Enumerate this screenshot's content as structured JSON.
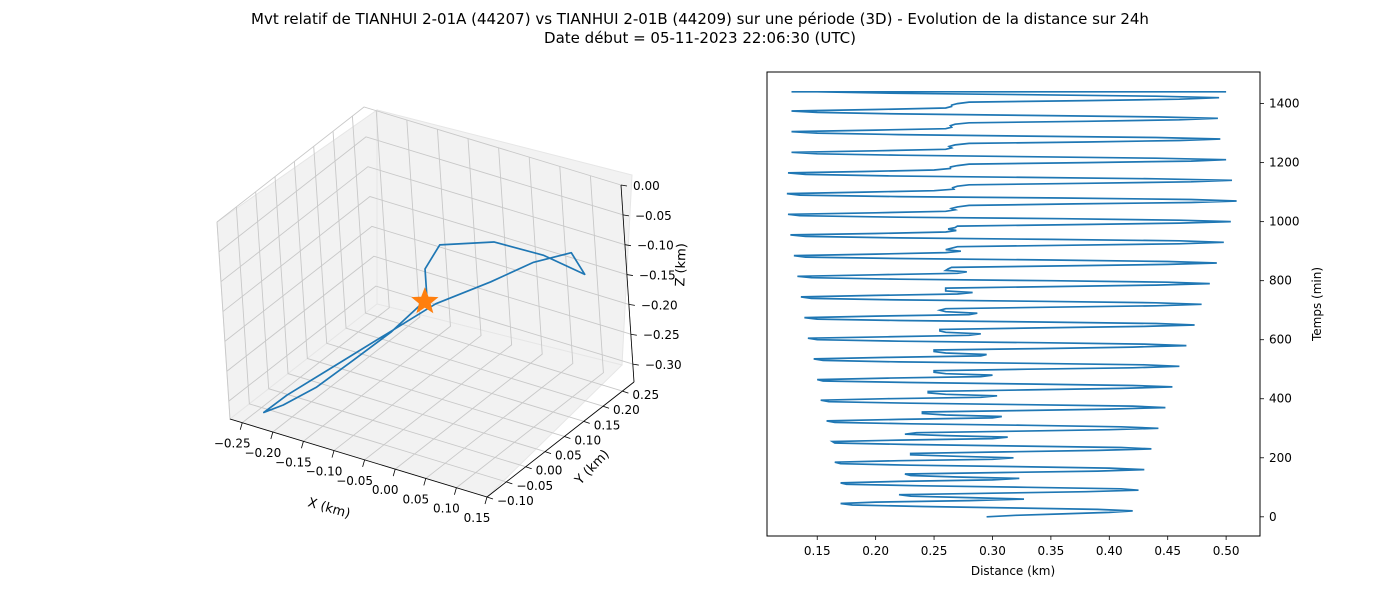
{
  "figure": {
    "title_line1": "Mvt relatif de TIANHUI 2-01A (44207) vs TIANHUI 2-01B (44209) sur une période (3D) - Evolution de la distance sur 24h",
    "title_line2": "Date début = 05-11-2023 22:06:30 (UTC)"
  },
  "colors": {
    "series": "#1f77b4",
    "marker": "#ff7f0e",
    "pane": "#f2f2f2",
    "grid": "#c8c8c8"
  },
  "chart_data": [
    {
      "type": "line3d",
      "xlabel": "X (km)",
      "ylabel": "Y (km)",
      "zlabel": "Z (km)",
      "xlim": [
        -0.27,
        0.15
      ],
      "ylim": [
        -0.1,
        0.28
      ],
      "zlim": [
        -0.33,
        0.0
      ],
      "x_ticks": [
        "−0.25",
        "−0.20",
        "−0.15",
        "−0.10",
        "−0.05",
        "0.00",
        "0.05",
        "0.10",
        "0.15"
      ],
      "y_ticks": [
        "−0.10",
        "−0.05",
        "0.00",
        "0.05",
        "0.10",
        "0.15",
        "0.20",
        "0.25"
      ],
      "z_ticks": [
        "0.00",
        "−0.05",
        "−0.10",
        "−0.15",
        "−0.20",
        "−0.25",
        "−0.30"
      ],
      "grid": true,
      "series": [
        {
          "points": [
            [
              -0.03,
              0.05,
              -0.13
            ],
            [
              -0.06,
              0.0,
              -0.17
            ],
            [
              -0.1,
              -0.04,
              -0.21
            ],
            [
              -0.15,
              -0.06,
              -0.26
            ],
            [
              -0.2,
              -0.07,
              -0.3
            ],
            [
              -0.24,
              -0.06,
              -0.33
            ],
            [
              -0.22,
              -0.03,
              -0.31
            ],
            [
              -0.16,
              0.01,
              -0.26
            ],
            [
              -0.1,
              0.05,
              -0.21
            ],
            [
              -0.05,
              0.1,
              -0.17
            ],
            [
              0.01,
              0.15,
              -0.14
            ],
            [
              0.05,
              0.2,
              -0.12
            ],
            [
              0.08,
              0.25,
              -0.12
            ],
            [
              0.1,
              0.25,
              -0.15
            ],
            [
              0.06,
              0.21,
              -0.11
            ],
            [
              0.02,
              0.15,
              -0.07
            ],
            [
              -0.03,
              0.09,
              -0.06
            ],
            [
              -0.03,
              0.05,
              -0.08
            ],
            [
              -0.03,
              0.05,
              -0.13
            ]
          ]
        }
      ],
      "marker": {
        "symbol": "star",
        "point": [
          0.0,
          0.0,
          -0.1
        ]
      }
    },
    {
      "type": "line",
      "xlabel": "Distance (km)",
      "ylabel": "Temps (min)",
      "xlim": [
        0.107,
        0.529
      ],
      "ylim": [
        -65,
        1507
      ],
      "x_ticks": [
        0.15,
        0.2,
        0.25,
        0.3,
        0.35,
        0.4,
        0.45,
        0.5
      ],
      "y_ticks": [
        0,
        200,
        400,
        600,
        800,
        1000,
        1200,
        1400
      ],
      "grid": false,
      "series": [
        {
          "t_step": 5,
          "t_max": 1440,
          "values": [
            0.295,
            0.32,
            0.36,
            0.4,
            0.42,
            0.39,
            0.32,
            0.24,
            0.18,
            0.17,
            0.2,
            0.28,
            0.327,
            0.28,
            0.23,
            0.22,
            0.3,
            0.38,
            0.425,
            0.41,
            0.33,
            0.24,
            0.175,
            0.17,
            0.22,
            0.3,
            0.323,
            0.27,
            0.23,
            0.225,
            0.31,
            0.39,
            0.43,
            0.4,
            0.32,
            0.23,
            0.17,
            0.165,
            0.22,
            0.3,
            0.318,
            0.27,
            0.23,
            0.23,
            0.31,
            0.39,
            0.436,
            0.41,
            0.32,
            0.23,
            0.165,
            0.163,
            0.22,
            0.3,
            0.313,
            0.26,
            0.225,
            0.235,
            0.32,
            0.4,
            0.442,
            0.41,
            0.33,
            0.23,
            0.165,
            0.158,
            0.22,
            0.3,
            0.308,
            0.26,
            0.24,
            0.24,
            0.32,
            0.4,
            0.448,
            0.42,
            0.33,
            0.23,
            0.16,
            0.153,
            0.21,
            0.29,
            0.304,
            0.26,
            0.245,
            0.245,
            0.33,
            0.41,
            0.454,
            0.42,
            0.33,
            0.23,
            0.155,
            0.15,
            0.21,
            0.29,
            0.3,
            0.26,
            0.25,
            0.25,
            0.33,
            0.42,
            0.46,
            0.43,
            0.33,
            0.22,
            0.155,
            0.147,
            0.21,
            0.29,
            0.295,
            0.26,
            0.25,
            0.25,
            0.34,
            0.42,
            0.466,
            0.43,
            0.34,
            0.22,
            0.15,
            0.142,
            0.21,
            0.28,
            0.29,
            0.26,
            0.255,
            0.255,
            0.34,
            0.43,
            0.473,
            0.44,
            0.34,
            0.22,
            0.15,
            0.139,
            0.2,
            0.28,
            0.287,
            0.26,
            0.255,
            0.26,
            0.35,
            0.44,
            0.479,
            0.44,
            0.34,
            0.22,
            0.145,
            0.136,
            0.2,
            0.27,
            0.283,
            0.26,
            0.26,
            0.26,
            0.35,
            0.44,
            0.486,
            0.45,
            0.35,
            0.22,
            0.145,
            0.133,
            0.2,
            0.27,
            0.278,
            0.26,
            0.262,
            0.265,
            0.36,
            0.45,
            0.492,
            0.45,
            0.35,
            0.22,
            0.14,
            0.13,
            0.2,
            0.26,
            0.273,
            0.26,
            0.265,
            0.27,
            0.36,
            0.46,
            0.498,
            0.46,
            0.35,
            0.22,
            0.14,
            0.127,
            0.2,
            0.26,
            0.269,
            0.262,
            0.268,
            0.27,
            0.37,
            0.46,
            0.504,
            0.46,
            0.36,
            0.22,
            0.135,
            0.125,
            0.2,
            0.26,
            0.268,
            0.265,
            0.27,
            0.28,
            0.37,
            0.47,
            0.509,
            0.47,
            0.36,
            0.22,
            0.135,
            0.124,
            0.19,
            0.25,
            0.267,
            0.266,
            0.27,
            0.28,
            0.38,
            0.47,
            0.505,
            0.44,
            0.33,
            0.21,
            0.14,
            0.125,
            0.19,
            0.25,
            0.264,
            0.264,
            0.27,
            0.28,
            0.38,
            0.47,
            0.5,
            0.44,
            0.33,
            0.22,
            0.15,
            0.128,
            0.2,
            0.26,
            0.265,
            0.263,
            0.268,
            0.28,
            0.38,
            0.46,
            0.495,
            0.44,
            0.33,
            0.22,
            0.15,
            0.128,
            0.2,
            0.26,
            0.265,
            0.264,
            0.268,
            0.28,
            0.38,
            0.46,
            0.493,
            0.44,
            0.33,
            0.22,
            0.15,
            0.128,
            0.2,
            0.26,
            0.265,
            0.265,
            0.27,
            0.28,
            0.38,
            0.46,
            0.494,
            0.44,
            0.33,
            0.22,
            0.15,
            0.128,
            0.2,
            0.26,
            0.266,
            0.265,
            0.27,
            0.28,
            0.38,
            0.46,
            0.5
          ]
        }
      ]
    }
  ]
}
